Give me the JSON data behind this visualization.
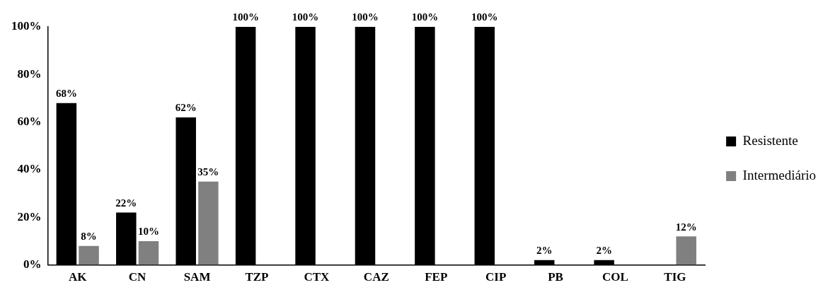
{
  "chart_data": {
    "type": "bar",
    "categories": [
      "AK",
      "CN",
      "SAM",
      "TZP",
      "CTX",
      "CAZ",
      "FEP",
      "CIP",
      "PB",
      "COL",
      "TIG"
    ],
    "series": [
      {
        "name": "Resistente",
        "color": "#000000",
        "values": [
          68,
          22,
          62,
          100,
          100,
          100,
          100,
          100,
          2,
          2,
          null
        ],
        "value_labels": [
          "68%",
          "22%",
          "62%",
          "100%",
          "100%",
          "100%",
          "100%",
          "100%",
          "2%",
          "2%",
          null
        ]
      },
      {
        "name": "Intermediário",
        "color": "#808080",
        "values": [
          8,
          10,
          35,
          null,
          null,
          null,
          null,
          null,
          null,
          null,
          12
        ],
        "value_labels": [
          "8%",
          "10%",
          "35%",
          null,
          null,
          null,
          null,
          null,
          null,
          null,
          "12%"
        ]
      }
    ],
    "ylim": [
      0,
      100
    ],
    "yticks": [
      {
        "value": 0,
        "label": "0%"
      },
      {
        "value": 20,
        "label": "20%"
      },
      {
        "value": 40,
        "label": "40%"
      },
      {
        "value": 60,
        "label": "60%"
      },
      {
        "value": 80,
        "label": "80%"
      },
      {
        "value": 100,
        "label": "100%"
      }
    ],
    "legend": "right",
    "grid": false
  }
}
